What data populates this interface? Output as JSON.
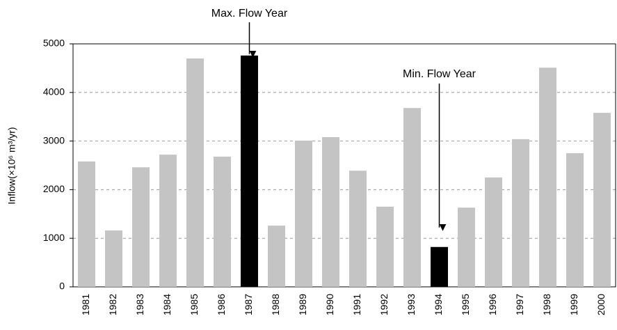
{
  "chart_data": {
    "type": "bar",
    "ylabel": "Inflow(×10⁶ m³/yr)",
    "categories": [
      "1981",
      "1982",
      "1983",
      "1984",
      "1985",
      "1986",
      "1987",
      "1988",
      "1989",
      "1990",
      "1991",
      "1992",
      "1993",
      "1994",
      "1995",
      "1996",
      "1997",
      "1998",
      "1999",
      "2000"
    ],
    "values": [
      2580,
      1160,
      2460,
      2720,
      4700,
      2680,
      4760,
      1260,
      3010,
      3080,
      2390,
      1650,
      3680,
      820,
      1630,
      2250,
      3040,
      4510,
      2750,
      3580
    ],
    "colors": [
      "#c4c4c4",
      "#c4c4c4",
      "#c4c4c4",
      "#c4c4c4",
      "#c4c4c4",
      "#c4c4c4",
      "#000000",
      "#c4c4c4",
      "#c4c4c4",
      "#c4c4c4",
      "#c4c4c4",
      "#c4c4c4",
      "#c4c4c4",
      "#000000",
      "#c4c4c4",
      "#c4c4c4",
      "#c4c4c4",
      "#c4c4c4",
      "#c4c4c4",
      "#c4c4c4"
    ],
    "ylim": [
      0,
      5000
    ],
    "yticks": [
      0,
      1000,
      2000,
      3000,
      4000,
      5000
    ],
    "grid": true,
    "max_annotation": "Max. Flow Year",
    "min_annotation": "Min. Flow Year"
  }
}
